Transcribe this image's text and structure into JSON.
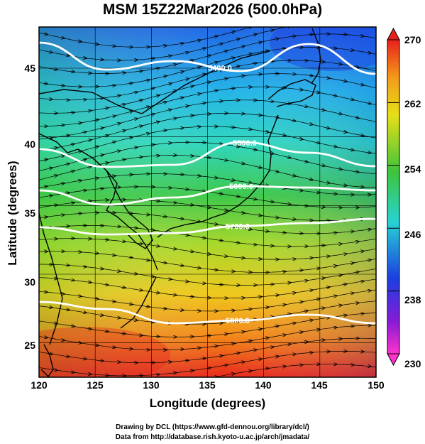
{
  "title": "MSM 15Z22Mar2026 (500.0hPa)",
  "axes": {
    "xlabel": "Longitude (degrees)",
    "ylabel": "Latitude  (degrees)",
    "x_ticks": [
      "120",
      "125",
      "130",
      "135",
      "140",
      "145",
      "150"
    ],
    "y_ticks": [
      "45",
      "40",
      "35",
      "30",
      "25"
    ],
    "xlim": [
      120,
      150
    ],
    "ylim": [
      22.5,
      48
    ]
  },
  "colorbar": {
    "ticks": [
      "270",
      "262",
      "254",
      "246",
      "238",
      "230"
    ],
    "range": [
      230,
      270
    ],
    "unit_quantity": "temperature (K)"
  },
  "contours": {
    "labels": [
      "5400.0",
      "5500.0",
      "5600.0",
      "5700.0",
      "5800.0"
    ],
    "color": "#ffffff"
  },
  "field": {
    "type": "temperature shading with wind streamlines",
    "colors": {
      "warm": "#e8201c",
      "orange": "#f39a1a",
      "yellow": "#e7df18",
      "green": "#3ec43a",
      "cyan": "#27d3d3",
      "blue": "#1a3fe0",
      "purple": "#8a1ad6",
      "magenta": "#ff33cc"
    }
  },
  "credits": {
    "line1": "Drawing by DCL (https://www.gfd-dennou.org/library/dcl/)",
    "line2": "Data from http://database.rish.kyoto-u.ac.jp/arch/jmadata/"
  }
}
